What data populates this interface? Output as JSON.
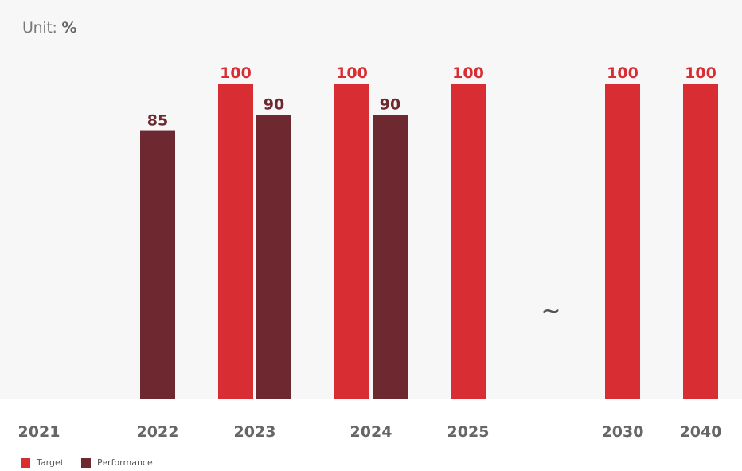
{
  "unit": {
    "prefix": "Unit:",
    "value": "%"
  },
  "break_symbol": "~",
  "colors": {
    "target": "#d92d34",
    "performance": "#6e2830",
    "target_label": "#d92d34",
    "performance_label": "#6e2830"
  },
  "legend": [
    {
      "name": "Target",
      "color": "#d92d34"
    },
    {
      "name": "Performance",
      "color": "#6e2830"
    }
  ],
  "chart_data": {
    "type": "bar",
    "title": "",
    "xlabel": "",
    "ylabel": "Unit: %",
    "ylim": [
      0,
      100
    ],
    "categories": [
      "2021",
      "2022",
      "2023",
      "2024",
      "2025",
      "2030",
      "2040"
    ],
    "series": [
      {
        "name": "Target",
        "values": [
          null,
          null,
          100,
          100,
          100,
          100,
          100
        ]
      },
      {
        "name": "Performance",
        "values": [
          null,
          85,
          90,
          90,
          null,
          null,
          null
        ]
      }
    ],
    "axis_break_between": [
      "2025",
      "2030"
    ],
    "grid": false,
    "legend_position": "bottom-left"
  }
}
